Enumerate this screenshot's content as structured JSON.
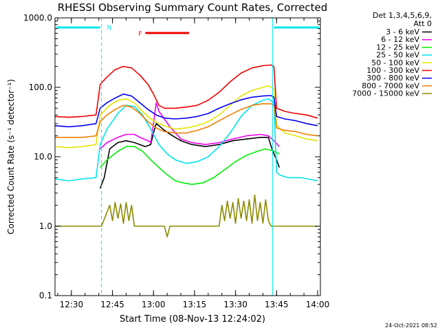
{
  "chart_data": {
    "type": "line",
    "title": "RHESSI Observing Summary Count Rates, Corrected",
    "xlabel": "Start Time (08-Nov-13 12:24:02)",
    "ylabel": "Corrected Count Rate (s⁻¹ detector⁻¹)",
    "yscale": "log",
    "ylim": [
      0.1,
      1000
    ],
    "xlim_minutes": [
      0,
      97
    ],
    "x_ticks": [
      {
        "t": 6,
        "label": "12:30"
      },
      {
        "t": 21,
        "label": "12:45"
      },
      {
        "t": 36,
        "label": "13:00"
      },
      {
        "t": 51,
        "label": "13:15"
      },
      {
        "t": 66,
        "label": "13:30"
      },
      {
        "t": 81,
        "label": "13:45"
      },
      {
        "t": 96,
        "label": "14:00"
      }
    ],
    "y_ticks": [
      {
        "v": 0.1,
        "label": "0.1"
      },
      {
        "v": 1,
        "label": "1.0"
      },
      {
        "v": 10,
        "label": "10.0"
      },
      {
        "v": 100,
        "label": "100.0"
      },
      {
        "v": 1000,
        "label": "1000.0"
      }
    ],
    "legend_header": [
      "Det 1,3,4,5,6,9,",
      "Att 0"
    ],
    "legend_placement": "right",
    "annotations": [
      {
        "text": "N",
        "color": "#00e5ee"
      },
      {
        "text": "F",
        "color": "#ee0000"
      }
    ],
    "night_intervals": [
      [
        0,
        17
      ],
      [
        79.5,
        97
      ]
    ],
    "flare_interval": [
      33,
      49
    ],
    "series": [
      {
        "name": "3 - 6 keV",
        "color": "#000000",
        "points": [
          [
            16.5,
            3.5
          ],
          [
            18,
            5
          ],
          [
            20,
            13
          ],
          [
            23,
            16
          ],
          [
            26,
            17
          ],
          [
            29,
            16
          ],
          [
            31,
            15
          ],
          [
            33,
            14
          ],
          [
            35,
            15
          ],
          [
            36,
            22
          ],
          [
            37,
            30
          ],
          [
            38,
            28
          ],
          [
            40,
            24
          ],
          [
            43,
            20
          ],
          [
            46,
            17
          ],
          [
            50,
            15
          ],
          [
            55,
            14
          ],
          [
            60,
            15
          ],
          [
            65,
            17
          ],
          [
            70,
            18
          ],
          [
            75,
            19
          ],
          [
            78,
            19
          ],
          [
            79,
            14
          ],
          [
            80,
            11
          ],
          [
            81,
            9
          ],
          [
            82,
            7
          ]
        ]
      },
      {
        "name": "6 - 12 keV",
        "color": "#ee00ee",
        "points": [
          [
            16.5,
            13
          ],
          [
            19,
            16
          ],
          [
            23,
            19
          ],
          [
            26,
            21
          ],
          [
            29,
            21
          ],
          [
            31,
            19
          ],
          [
            34,
            17
          ],
          [
            35,
            16
          ],
          [
            36,
            30
          ],
          [
            37,
            60
          ],
          [
            38,
            45
          ],
          [
            40,
            35
          ],
          [
            42,
            27
          ],
          [
            44,
            22
          ],
          [
            46,
            18
          ],
          [
            50,
            16
          ],
          [
            55,
            15
          ],
          [
            60,
            16
          ],
          [
            65,
            18
          ],
          [
            70,
            20
          ],
          [
            75,
            21
          ],
          [
            78,
            20
          ],
          [
            80,
            17
          ],
          [
            82,
            14
          ]
        ]
      },
      {
        "name": "12 - 25 keV",
        "color": "#00ee00",
        "points": [
          [
            16.5,
            7
          ],
          [
            19,
            9
          ],
          [
            23,
            12
          ],
          [
            26,
            14
          ],
          [
            29,
            14
          ],
          [
            32,
            12
          ],
          [
            35,
            9
          ],
          [
            38,
            7
          ],
          [
            41,
            5.5
          ],
          [
            44,
            4.5
          ],
          [
            47,
            4.2
          ],
          [
            50,
            4
          ],
          [
            54,
            4.2
          ],
          [
            58,
            5
          ],
          [
            62,
            6.5
          ],
          [
            66,
            8.5
          ],
          [
            70,
            10.5
          ],
          [
            74,
            12
          ],
          [
            77,
            13
          ],
          [
            80,
            12
          ],
          [
            82,
            11
          ]
        ]
      },
      {
        "name": "25 - 50 keV",
        "color": "#00e5ee",
        "points": [
          [
            0,
            4.8
          ],
          [
            5,
            4.5
          ],
          [
            10,
            4.8
          ],
          [
            15,
            5
          ],
          [
            16.5,
            15
          ],
          [
            19,
            25
          ],
          [
            23,
            42
          ],
          [
            26,
            55
          ],
          [
            29,
            53
          ],
          [
            32,
            40
          ],
          [
            35,
            25
          ],
          [
            38,
            15
          ],
          [
            41,
            11
          ],
          [
            44,
            9
          ],
          [
            48,
            8
          ],
          [
            52,
            8.5
          ],
          [
            56,
            10
          ],
          [
            60,
            14
          ],
          [
            64,
            22
          ],
          [
            68,
            38
          ],
          [
            72,
            55
          ],
          [
            76,
            65
          ],
          [
            78,
            68
          ],
          [
            80,
            60
          ],
          [
            81,
            6
          ],
          [
            82,
            5.5
          ],
          [
            85,
            5
          ],
          [
            90,
            5
          ],
          [
            96,
            4.5
          ]
        ]
      },
      {
        "name": "50 - 100 keV",
        "color": "#e5e500",
        "points": [
          [
            0,
            14
          ],
          [
            5,
            13.5
          ],
          [
            10,
            14
          ],
          [
            15,
            15
          ],
          [
            16.5,
            40
          ],
          [
            20,
            55
          ],
          [
            23,
            65
          ],
          [
            26,
            68
          ],
          [
            29,
            60
          ],
          [
            32,
            45
          ],
          [
            35,
            35
          ],
          [
            38,
            30
          ],
          [
            41,
            27
          ],
          [
            44,
            25
          ],
          [
            48,
            26
          ],
          [
            52,
            28
          ],
          [
            56,
            32
          ],
          [
            60,
            40
          ],
          [
            64,
            55
          ],
          [
            68,
            75
          ],
          [
            72,
            90
          ],
          [
            76,
            100
          ],
          [
            78,
            105
          ],
          [
            80,
            95
          ],
          [
            81,
            28
          ],
          [
            84,
            22
          ],
          [
            88,
            20
          ],
          [
            92,
            18
          ],
          [
            96,
            17
          ]
        ]
      },
      {
        "name": "100 - 300 keV",
        "color": "#ee0000",
        "points": [
          [
            0,
            38
          ],
          [
            5,
            37
          ],
          [
            10,
            38
          ],
          [
            15,
            40
          ],
          [
            16.5,
            110
          ],
          [
            19,
            140
          ],
          [
            22,
            180
          ],
          [
            25,
            200
          ],
          [
            28,
            190
          ],
          [
            31,
            150
          ],
          [
            34,
            110
          ],
          [
            36,
            80
          ],
          [
            38,
            55
          ],
          [
            40,
            50
          ],
          [
            44,
            50
          ],
          [
            48,
            52
          ],
          [
            52,
            55
          ],
          [
            56,
            65
          ],
          [
            60,
            85
          ],
          [
            64,
            120
          ],
          [
            68,
            160
          ],
          [
            72,
            190
          ],
          [
            76,
            205
          ],
          [
            79,
            210
          ],
          [
            80,
            200
          ],
          [
            81,
            50
          ],
          [
            84,
            45
          ],
          [
            88,
            42
          ],
          [
            92,
            40
          ],
          [
            96,
            36
          ]
        ]
      },
      {
        "name": "300 - 800 keV",
        "color": "#0000ee",
        "points": [
          [
            0,
            28
          ],
          [
            5,
            27
          ],
          [
            10,
            28
          ],
          [
            15,
            30
          ],
          [
            16.5,
            50
          ],
          [
            19,
            60
          ],
          [
            22,
            70
          ],
          [
            25,
            80
          ],
          [
            28,
            75
          ],
          [
            31,
            60
          ],
          [
            34,
            48
          ],
          [
            37,
            40
          ],
          [
            40,
            36
          ],
          [
            44,
            35
          ],
          [
            48,
            36
          ],
          [
            52,
            38
          ],
          [
            56,
            42
          ],
          [
            60,
            50
          ],
          [
            64,
            58
          ],
          [
            68,
            66
          ],
          [
            72,
            72
          ],
          [
            76,
            75
          ],
          [
            79,
            76
          ],
          [
            80,
            72
          ],
          [
            81,
            38
          ],
          [
            84,
            35
          ],
          [
            88,
            33
          ],
          [
            92,
            30
          ],
          [
            96,
            28
          ]
        ]
      },
      {
        "name": "800 - 7000 keV",
        "color": "#ee7f00",
        "points": [
          [
            0,
            19
          ],
          [
            5,
            19
          ],
          [
            10,
            19
          ],
          [
            15,
            20
          ],
          [
            16.5,
            32
          ],
          [
            19,
            40
          ],
          [
            22,
            48
          ],
          [
            25,
            55
          ],
          [
            28,
            52
          ],
          [
            31,
            42
          ],
          [
            34,
            32
          ],
          [
            37,
            26
          ],
          [
            40,
            23
          ],
          [
            44,
            22
          ],
          [
            48,
            22
          ],
          [
            52,
            24
          ],
          [
            56,
            27
          ],
          [
            60,
            33
          ],
          [
            64,
            40
          ],
          [
            68,
            48
          ],
          [
            72,
            55
          ],
          [
            76,
            58
          ],
          [
            79,
            58
          ],
          [
            80,
            55
          ],
          [
            81,
            26
          ],
          [
            84,
            24
          ],
          [
            88,
            23
          ],
          [
            92,
            21
          ],
          [
            96,
            20
          ]
        ]
      },
      {
        "name": "7000 - 15000 keV",
        "color": "#8b8b00",
        "points": [
          [
            0,
            1
          ],
          [
            16,
            1
          ],
          [
            17,
            1
          ],
          [
            20,
            2
          ],
          [
            21,
            1.2
          ],
          [
            22,
            2.2
          ],
          [
            23,
            1.3
          ],
          [
            24,
            2.1
          ],
          [
            25,
            1.1
          ],
          [
            26,
            2.2
          ],
          [
            27,
            1.2
          ],
          [
            28,
            2
          ],
          [
            29,
            1
          ],
          [
            31,
            1
          ],
          [
            40,
            1
          ],
          [
            41,
            0.7
          ],
          [
            42,
            1
          ],
          [
            60,
            1
          ],
          [
            61,
            2
          ],
          [
            62,
            1.2
          ],
          [
            63,
            2.3
          ],
          [
            64,
            1.3
          ],
          [
            65,
            2.2
          ],
          [
            66,
            1.1
          ],
          [
            67,
            2.5
          ],
          [
            68,
            1.3
          ],
          [
            69,
            2.3
          ],
          [
            70,
            1.2
          ],
          [
            71,
            2.4
          ],
          [
            72,
            1.1
          ],
          [
            73,
            2.8
          ],
          [
            74,
            1.2
          ],
          [
            75,
            2.2
          ],
          [
            76,
            1.1
          ],
          [
            77,
            2.4
          ],
          [
            78,
            1.2
          ],
          [
            79,
            1
          ],
          [
            82,
            1
          ],
          [
            96,
            1
          ]
        ]
      }
    ]
  },
  "footer": {
    "timestamp": "24-Oct-2021 08:52"
  }
}
